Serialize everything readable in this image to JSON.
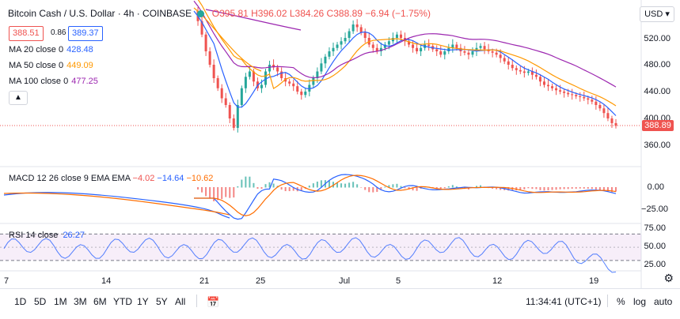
{
  "header": {
    "symbol": "Bitcoin Cash / U.S. Dollar · 4h · COINBASE",
    "ohlc": "O395.81 H396.02 L384.26 C388.89 −6.94 (−1.75%)",
    "sell_price": "388.51",
    "spread": "0.86",
    "buy_price": "389.37",
    "collapse_icon": "chevron-up-icon"
  },
  "moving_averages": [
    {
      "label": "MA 20 close 0",
      "value": "428.48",
      "color": "#2962ff"
    },
    {
      "label": "MA 50 close 0",
      "value": "449.09",
      "color": "#ff9800"
    },
    {
      "label": "MA 100 close 0",
      "value": "477.25",
      "color": "#9c27b0"
    }
  ],
  "currency_select": "USD",
  "price_axis": {
    "ticks": [
      "520.00",
      "480.00",
      "440.00",
      "400.00",
      "360.00"
    ],
    "current_price": "388.89",
    "current_color": "#ef5350"
  },
  "macd": {
    "label": "MACD 12 26 close 9 EMA EMA",
    "hist": "−4.02",
    "macd": "−14.64",
    "signal": "−10.62",
    "ticks": [
      "0.00",
      "−25.00"
    ]
  },
  "rsi": {
    "label": "RSI 14 close",
    "value": "26.27",
    "ticks": [
      "75.00",
      "50.00",
      "25.00"
    ]
  },
  "time_axis": {
    "labels": [
      "7",
      "14",
      "21",
      "25",
      "Jul",
      "5",
      "12",
      "19"
    ]
  },
  "toolbar": {
    "ranges": [
      "1D",
      "5D",
      "1M",
      "3M",
      "6M",
      "YTD",
      "1Y",
      "5Y",
      "All"
    ],
    "compare_icon": "calendar-range-icon",
    "clock": "11:34:41 (UTC+1)",
    "percent": "%",
    "log": "log",
    "auto": "auto"
  },
  "chart_data": [
    {
      "type": "candlestick",
      "title": "Bitcoin Cash / U.S. Dollar · 4h · COINBASE",
      "x": [
        "7",
        "14",
        "21",
        "25",
        "Jul",
        "5",
        "12",
        "19"
      ],
      "y_ticks": [
        520,
        480,
        440,
        400,
        360
      ],
      "price_series": [
        null,
        null,
        null,
        null,
        null,
        null,
        null,
        null,
        null,
        null,
        null,
        null,
        null,
        null,
        null,
        null,
        null,
        null,
        null,
        null,
        null,
        null,
        null,
        null,
        null,
        null,
        null,
        null,
        null,
        null,
        null,
        null,
        null,
        null,
        null,
        null,
        null,
        null,
        null,
        null,
        null,
        null,
        null,
        null,
        null,
        null,
        null,
        null,
        null,
        null,
        null,
        null,
        null,
        null,
        null,
        null,
        null,
        null,
        null,
        null,
        null,
        null,
        null,
        null,
        null,
        null,
        null,
        null,
        null,
        null,
        560,
        545,
        525,
        500,
        480,
        460,
        445,
        430,
        420,
        400,
        386,
        420,
        445,
        462,
        470,
        455,
        445,
        450,
        470,
        480,
        476,
        470,
        460,
        455,
        452,
        448,
        440,
        435,
        440,
        450,
        460,
        470,
        482,
        492,
        500,
        505,
        510,
        515,
        520,
        530,
        540,
        536,
        528,
        520,
        510,
        505,
        500,
        505,
        510,
        515,
        520,
        525,
        520,
        515,
        510,
        505,
        500,
        505,
        510,
        508,
        503,
        500,
        495,
        500,
        505,
        510,
        505,
        500,
        498,
        495,
        500,
        505,
        508,
        503,
        500,
        498,
        495,
        490,
        485,
        480,
        475,
        472,
        470,
        468,
        470,
        465,
        462,
        455,
        450,
        448,
        445,
        442,
        440,
        438,
        436,
        435,
        433,
        432,
        430,
        428,
        425,
        420,
        415,
        408,
        400,
        393,
        389
      ],
      "series": [
        {
          "name": "MA 20",
          "last": 428.48
        },
        {
          "name": "MA 50",
          "last": 449.09
        },
        {
          "name": "MA 100",
          "last": 477.25
        }
      ],
      "last_close": 388.89
    },
    {
      "type": "line",
      "title": "MACD 12 26 close 9 EMA EMA",
      "y_ticks": [
        0,
        -25
      ],
      "series": [
        {
          "name": "MACD",
          "last": -14.64
        },
        {
          "name": "Signal",
          "last": -10.62
        }
      ],
      "histogram_last": -4.02
    },
    {
      "type": "line",
      "title": "RSI 14 close",
      "y_ticks": [
        75,
        50,
        25
      ],
      "series": [
        {
          "name": "RSI",
          "last": 26.27
        }
      ]
    }
  ]
}
